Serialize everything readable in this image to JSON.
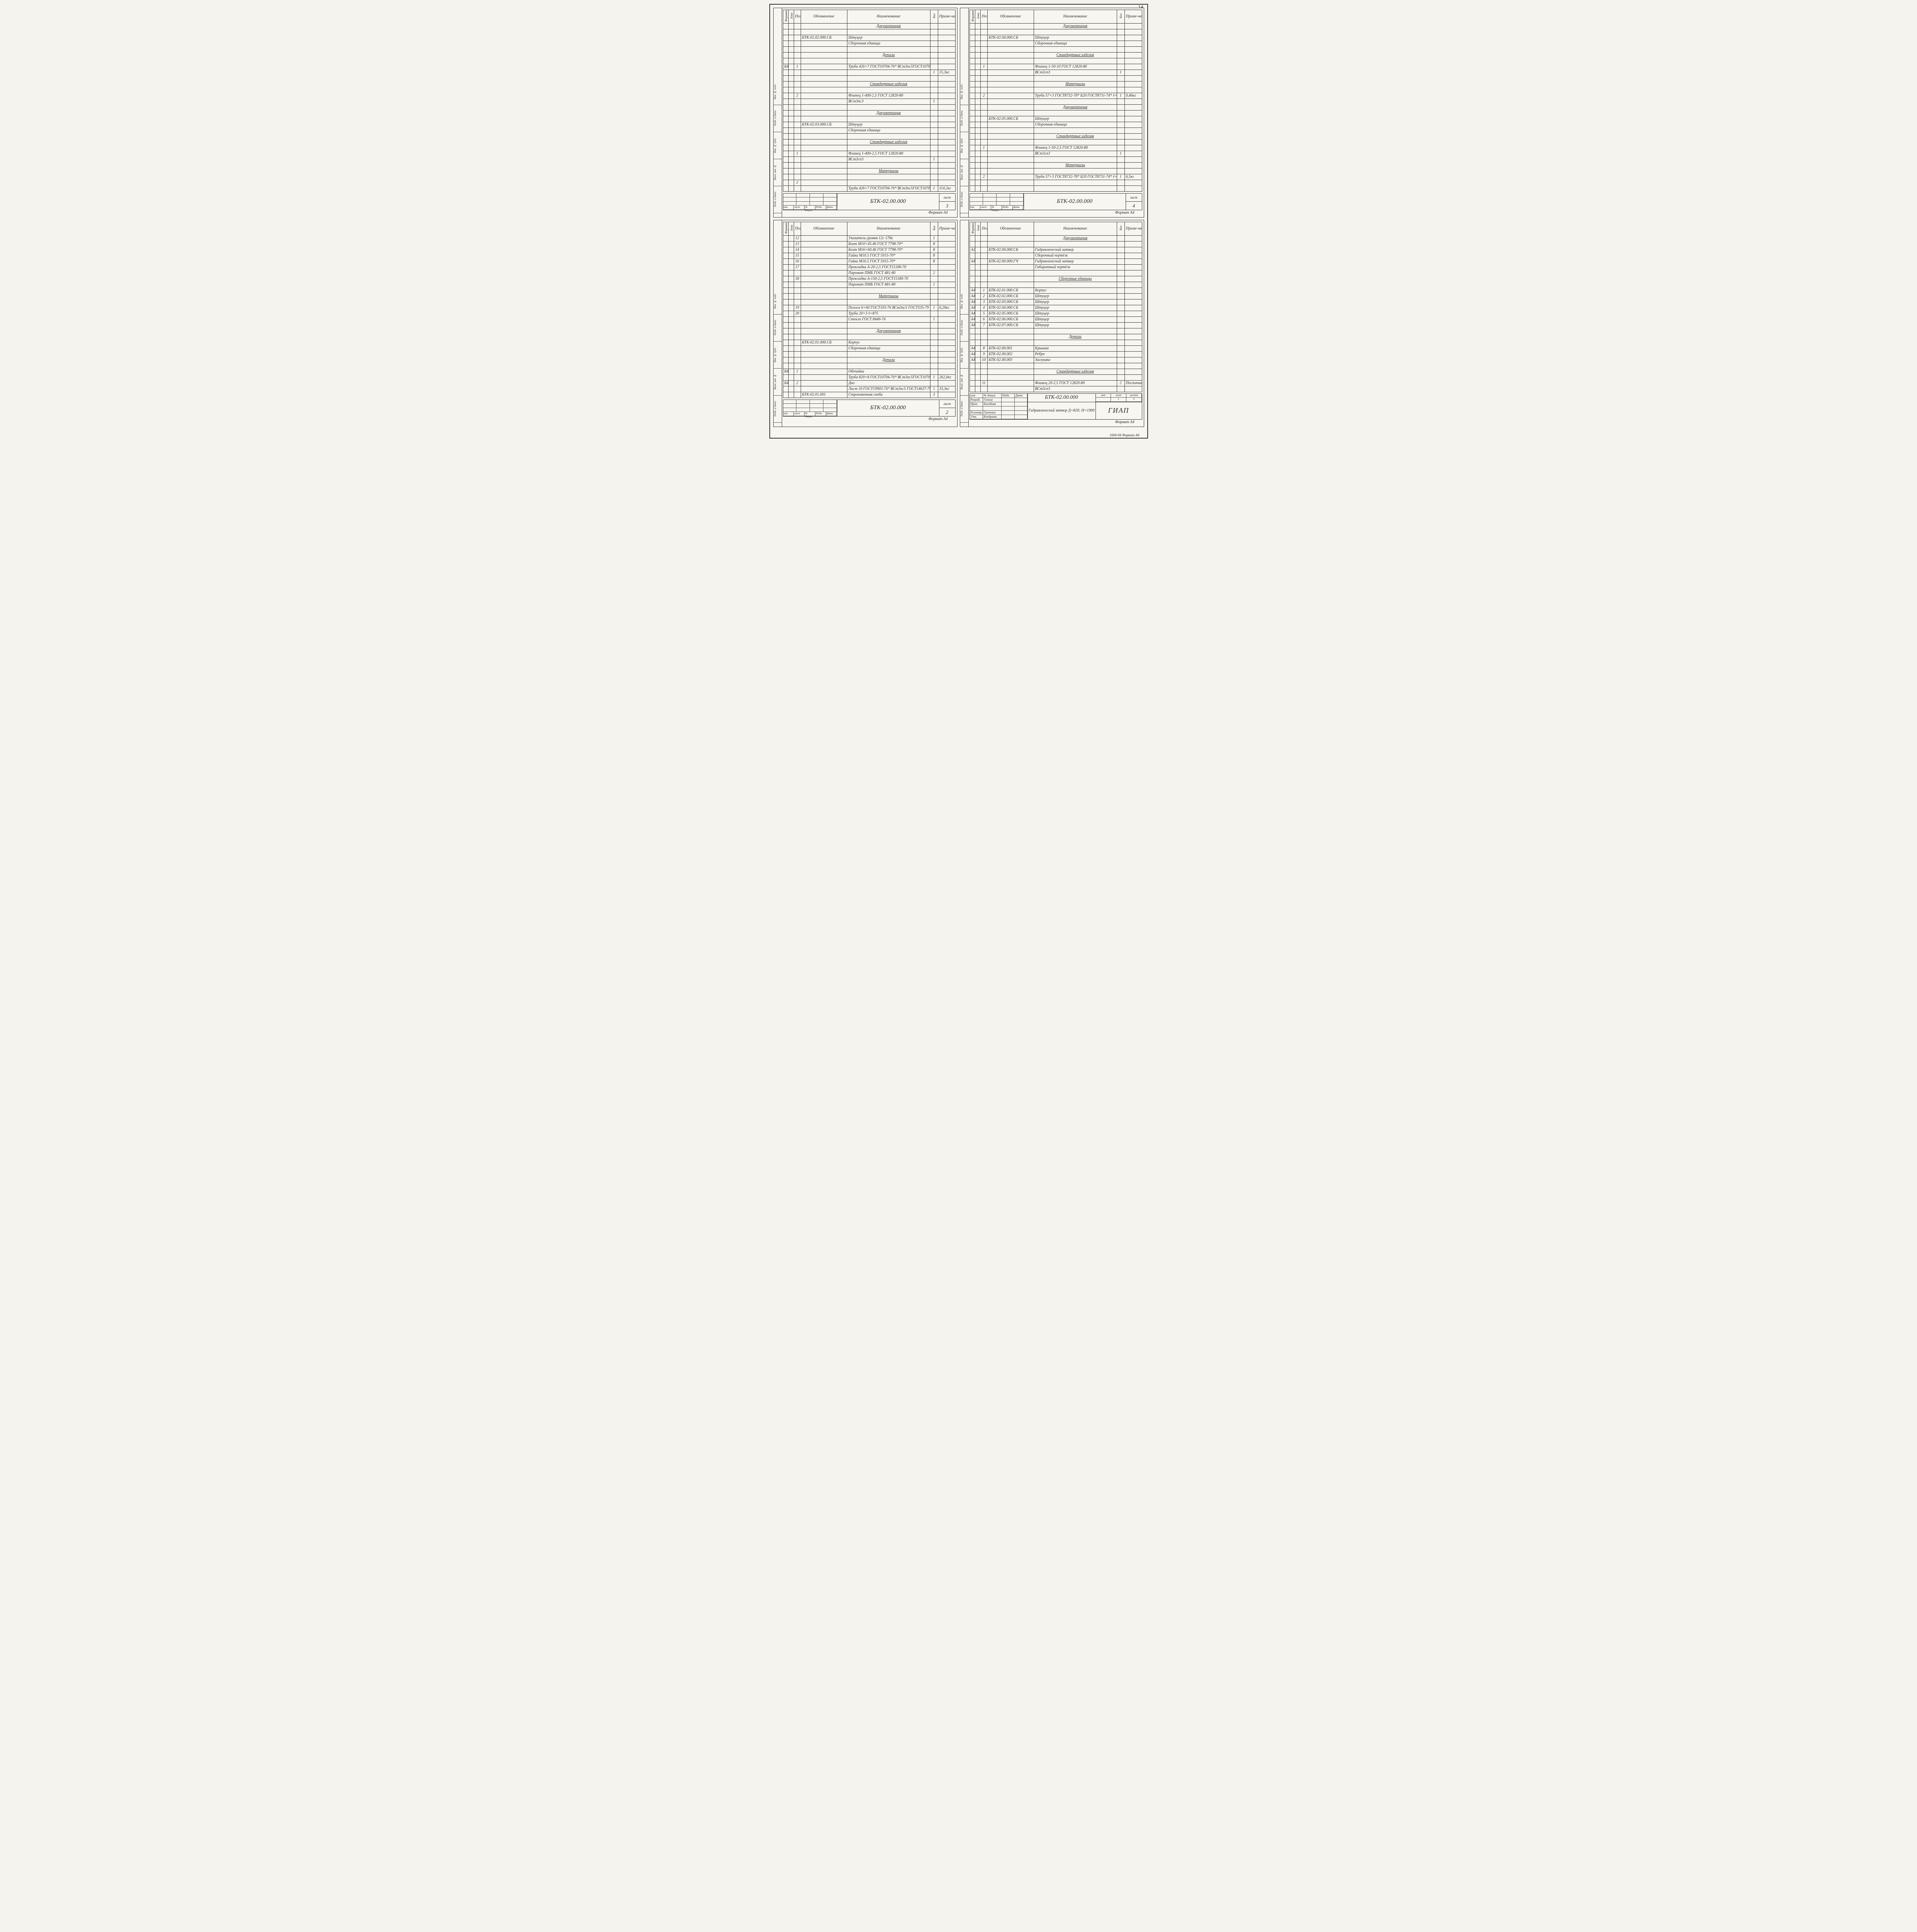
{
  "pageNumber": "14",
  "formatLabel": "Формат А4",
  "bottomLabel": "1604-04 Формат А4",
  "headers": {
    "fmt": "Формат",
    "zone": "Зона",
    "pos": "Поз.",
    "desig": "Обозначение",
    "name": "Наименование",
    "qty": "Кол",
    "note": "Приме-чание"
  },
  "footerCells": {
    "izm": "изм",
    "list": "лист",
    "ndoc": "№ докум.",
    "podp": "Подп.",
    "data": "Дата",
    "listLabel": "лист"
  },
  "docCode": "БТК-02.00.000",
  "sideLabels": [
    "Подп. и дата",
    "Взам. инв. №",
    "Инв. № дубл.",
    "Подп. и дата",
    "Инв. № подл."
  ],
  "panels": [
    {
      "sheetNo": "3",
      "rows": [
        {
          "name": "Документация",
          "cls": "section-hdr"
        },
        {},
        {
          "desig": "БТК-02.02.000.СБ",
          "name": "Штуцер"
        },
        {
          "name": "Сборочная единица"
        },
        {},
        {
          "name": "Детали",
          "cls": "section-hdr"
        },
        {},
        {
          "fmt": "Б4",
          "pos": "1",
          "name": "Труба 426×7 ГОСТ10704-76* ВСт3пс5ГОСТ10706-76* ℓ=213"
        },
        {
          "qty": "1",
          "note": "15,3кг"
        },
        {},
        {
          "name": "Стандартные изделия",
          "cls": "section-hdr"
        },
        {},
        {
          "pos": "2",
          "name": "Фланец 1-400-2,5 ГОСТ 12820-80"
        },
        {
          "name": "ВСт3пс3",
          "qty": "1"
        },
        {},
        {
          "name": "Документация",
          "cls": "section-hdr"
        },
        {},
        {
          "desig": "БТК-02.03.000.СБ",
          "name": "Штуцер"
        },
        {
          "name": "Сборочная единица"
        },
        {},
        {
          "name": "Стандартные изделия",
          "cls": "section-hdr"
        },
        {},
        {
          "pos": "1",
          "name": "Фланец 1-400-2,5 ГОСТ 12820-80"
        },
        {
          "name": "ВСт3сп3",
          "qty": "1"
        },
        {},
        {
          "name": "Материалы",
          "cls": "section-hdr"
        },
        {},
        {
          "pos": "2"
        },
        {
          "name": "Труба 426×7 ГОСТ10704-76* ВСт3пс5ГОСТ10706-76* ℓ=1580",
          "qty": "1",
          "note": "114,2кг"
        }
      ]
    },
    {
      "sheetNo": "4",
      "rows": [
        {
          "name": "Документация",
          "cls": "section-hdr"
        },
        {},
        {
          "desig": "БТК-02.04.000.СБ",
          "name": "Штуцер"
        },
        {
          "name": "Сборочная единица"
        },
        {},
        {
          "name": "Стандартные изделия",
          "cls": "section-hdr"
        },
        {},
        {
          "pos": "1",
          "name": "Фланец 1-50-10 ГОСТ 12820-80"
        },
        {
          "name": "ВСт3сп3",
          "qty": "1"
        },
        {},
        {
          "name": "Материалы",
          "cls": "section-hdr"
        },
        {},
        {
          "pos": "2",
          "name": "Труба 57×3 ГОСТ8732-78* Б20 ГОСТ8731-74* ℓ=115",
          "qty": "1",
          "note": "0,46кг"
        },
        {},
        {
          "name": "Документация",
          "cls": "section-hdr"
        },
        {},
        {
          "desig": "БТК-02.05.000.СБ",
          "name": "Штуцер"
        },
        {
          "name": "Сборочная единица"
        },
        {},
        {
          "name": "Стандартные изделия",
          "cls": "section-hdr"
        },
        {},
        {
          "pos": "1",
          "name": "Фланец 1-50-2,5 ГОСТ 12820-80"
        },
        {
          "name": "ВСт3сп3",
          "qty": "1"
        },
        {},
        {
          "name": "Материалы",
          "cls": "section-hdr"
        },
        {},
        {
          "pos": "2",
          "name": "Труба 57×3 ГОСТ8732-78* Б20 ГОСТ8731-74* ℓ=1605",
          "qty": "1",
          "note": "6,5кг"
        },
        {},
        {}
      ]
    },
    {
      "sheetNo": "2",
      "rows": [
        {
          "pos": "12",
          "name": "Указатель уровня 12с 17бк",
          "qty": "1"
        },
        {
          "pos": "13",
          "name": "Болт М10×45.46 ГОСТ 7798-70*",
          "qty": "8"
        },
        {
          "pos": "14",
          "name": "Болт М16×60.46 ГОСТ 7798-70*",
          "qty": "8"
        },
        {
          "pos": "15",
          "name": "Гайка М10.5 ГОСТ 5915-70*",
          "qty": "8"
        },
        {
          "pos": "16",
          "name": "Гайка М16.5 ГОСТ 5915-70*",
          "qty": "8"
        },
        {
          "pos": "17",
          "name": "Прокладка А-20-2,5 ГОСТ15180-70"
        },
        {
          "name": "Паронит ПМБ ГОСТ 481-80",
          "qty": "2"
        },
        {
          "pos": "18",
          "name": "Прокладка А-150-2,5 ГОСТ15180-70"
        },
        {
          "name": "Паронит ПМБ ГОСТ 481-80",
          "qty": "1"
        },
        {},
        {
          "name": "Материалы",
          "cls": "section-hdr"
        },
        {},
        {
          "pos": "19",
          "name": "Полоса 6×60 ГОСТ103-76 ВСт3пс5 ГОСТ535-79 ℓ=70",
          "qty": "1",
          "note": "0,20кг"
        },
        {
          "pos": "20",
          "name": "Труба 20×3   ℓ=875"
        },
        {
          "name": "Стекло ГОСТ 8446-74",
          "qty": "1"
        },
        {},
        {
          "name": "Документация",
          "cls": "section-hdr"
        },
        {},
        {
          "desig": "БТК-02.01.000.СБ",
          "name": "Корпус"
        },
        {
          "name": "Сборочная единица"
        },
        {},
        {
          "name": "Детали",
          "cls": "section-hdr"
        },
        {},
        {
          "fmt": "Б4",
          "pos": "1",
          "name": "Обечайка"
        },
        {
          "name": "Труба 820×8 ГОСТ10704-76* ВСт3пс5ГОСТ10706-78* ℓ=1700",
          "qty": "1",
          "note": "262,0кг"
        },
        {
          "fmt": "Б4",
          "pos": "2",
          "name": "Дно"
        },
        {
          "name": "Лист 10 ГОСТ19903-74* ВСт3пс5 ГОСТ14637-79",
          "qty": "1",
          "note": "33,3кг"
        },
        {
          "desig": "БТК-02.01.001",
          "name": "Строповочная скоба",
          "qty": "3"
        }
      ]
    },
    {
      "isTitle": true,
      "rows": [
        {
          "name": "Документация",
          "cls": "section-hdr"
        },
        {},
        {
          "fmt": "А2",
          "desig": "БТК-02.00.000.СБ",
          "name": "Гидравлический затвор"
        },
        {
          "name": "Сборочный чертёж"
        },
        {
          "fmt": "А4",
          "desig": "БТК-02.00.000.ГЧ",
          "name": "Гидравлический затвор"
        },
        {
          "name": "Габаритный чертёж"
        },
        {},
        {
          "name": "Сборочные единицы",
          "cls": "section-hdr"
        },
        {},
        {
          "fmt": "А4",
          "pos": "1",
          "desig": "БТК-02.01.000.СБ",
          "name": "Корпус"
        },
        {
          "fmt": "А4",
          "pos": "2",
          "desig": "БТК-02.02.000.СБ",
          "name": "Штуцер"
        },
        {
          "fmt": "А4",
          "pos": "3",
          "desig": "БТК-02.03.000.СБ",
          "name": "Штуцер"
        },
        {
          "fmt": "А4",
          "pos": "4",
          "desig": "БТК-02.04.000.СБ",
          "name": "Штуцер"
        },
        {
          "fmt": "А4",
          "pos": "5",
          "desig": "БТК-02.05.000.СБ",
          "name": "Штуцер"
        },
        {
          "fmt": "А4",
          "pos": "6",
          "desig": "БТК-02.06.000.СБ",
          "name": "Штуцер"
        },
        {
          "fmt": "А4",
          "pos": "7",
          "desig": "БТК-02.07.000.СБ",
          "name": "Штуцер"
        },
        {},
        {
          "name": "Детали",
          "cls": "section-hdr"
        },
        {},
        {
          "fmt": "А4",
          "pos": "8",
          "desig": "БТК-02.00.001",
          "name": "Крышка"
        },
        {
          "fmt": "А4",
          "pos": "9",
          "desig": "БТК-02.00.002",
          "name": "Ребро"
        },
        {
          "fmt": "А4",
          "pos": "10",
          "desig": "БТК-02.00.003",
          "name": "Заглушка"
        },
        {},
        {
          "name": "Стандартные изделия",
          "cls": "section-hdr"
        },
        {},
        {
          "pos": "11",
          "name": "Фланец 20-2,5 ГОСТ 12820-80",
          "qty": "2",
          "note": "Постачив. по разм. сопряж. дет."
        },
        {
          "name": "ВСт3сп3"
        }
      ],
      "titleBlock": {
        "code": "БТК-02.00.000",
        "desc": "Гидравлический затвор Д=820; Н=1900",
        "org": "ГИАП",
        "roles": [
          {
            "r": "Разраб.",
            "n": "Газина"
          },
          {
            "r": "Пров.",
            "n": "Касабова"
          },
          {
            "r": "",
            "n": ""
          },
          {
            "r": "Н.контр.",
            "n": "Гринчаев"
          },
          {
            "r": "Утв.",
            "n": "Кондрать"
          }
        ],
        "lit": "",
        "list": "1",
        "listov": "5"
      }
    }
  ]
}
